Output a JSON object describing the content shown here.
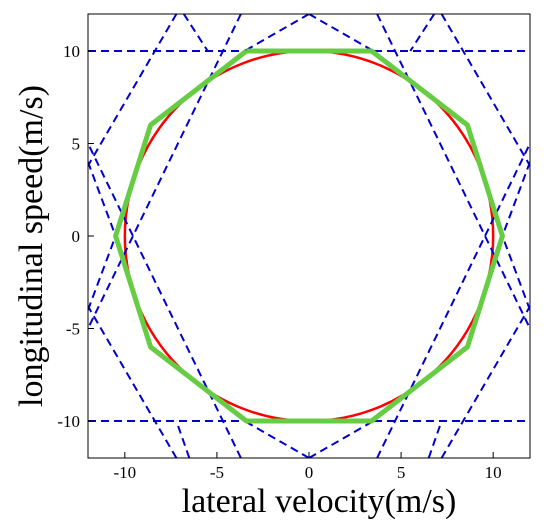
{
  "chart_data": {
    "type": "line",
    "title": "",
    "xlabel": "lateral velocity(m/s)",
    "ylabel": "longitudinal speed(m/s)",
    "xlim": [
      -12,
      12
    ],
    "ylim": [
      -12,
      12
    ],
    "xticks": [
      -10,
      -5,
      0,
      5,
      10
    ],
    "yticks": [
      -10,
      -5,
      0,
      5,
      10
    ],
    "grid": false,
    "legend": "none",
    "series": [
      {
        "kind": "circle",
        "color": "#ff0000",
        "center": [
          0,
          0
        ],
        "radius": 10,
        "style": "solid"
      },
      {
        "kind": "constraint-lines",
        "color": "#0000cc",
        "style": "dashed",
        "lines": [
          {
            "points": [
              [
                -12,
                10
              ],
              [
                12,
                10
              ]
            ]
          },
          {
            "points": [
              [
                -12,
                -10
              ],
              [
                12,
                -10
              ]
            ]
          },
          {
            "points": [
              [
                -7.2,
                12
              ],
              [
                -12,
                3.8
              ]
            ]
          },
          {
            "points": [
              [
                7.2,
                12
              ],
              [
                12,
                3.8
              ]
            ]
          },
          {
            "points": [
              [
                -7.2,
                -12
              ],
              [
                -12,
                -3.8
              ]
            ]
          },
          {
            "points": [
              [
                7.2,
                -12
              ],
              [
                12,
                -3.8
              ]
            ]
          },
          {
            "points": [
              [
                -3.7,
                12
              ],
              [
                -12,
                -5
              ]
            ]
          },
          {
            "points": [
              [
                3.7,
                12
              ],
              [
                12,
                -5
              ]
            ]
          },
          {
            "points": [
              [
                -3.7,
                -12
              ],
              [
                -12,
                5
              ]
            ]
          },
          {
            "points": [
              [
                3.7,
                -12
              ],
              [
                12,
                5
              ]
            ]
          },
          {
            "points": [
              [
                -6.8,
                12
              ],
              [
                -5.5,
                10
              ]
            ]
          },
          {
            "points": [
              [
                6.8,
                12
              ],
              [
                5.5,
                10
              ]
            ]
          },
          {
            "points": [
              [
                -6.5,
                -12
              ],
              [
                -7.2,
                -10
              ]
            ]
          },
          {
            "points": [
              [
                6.5,
                -12
              ],
              [
                7.2,
                -10
              ]
            ]
          },
          {
            "points": [
              [
                -12,
                4
              ],
              [
                -10.5,
                0
              ]
            ]
          },
          {
            "points": [
              [
                12,
                4
              ],
              [
                10.5,
                0
              ]
            ]
          },
          {
            "points": [
              [
                -12,
                -4
              ],
              [
                -10.5,
                0
              ]
            ]
          },
          {
            "points": [
              [
                12,
                -4
              ],
              [
                10.5,
                0
              ]
            ]
          },
          {
            "points": [
              [
                0,
                12
              ],
              [
                -3.5,
                10
              ]
            ]
          },
          {
            "points": [
              [
                0,
                12
              ],
              [
                3.5,
                10
              ]
            ]
          },
          {
            "points": [
              [
                0,
                -12
              ],
              [
                -3.5,
                -10
              ]
            ]
          },
          {
            "points": [
              [
                0,
                -12
              ],
              [
                3.5,
                -10
              ]
            ]
          }
        ]
      },
      {
        "kind": "polygon",
        "color": "#66cc44",
        "style": "solid",
        "points": [
          [
            -3.4,
            10
          ],
          [
            3.4,
            10
          ],
          [
            8.6,
            6
          ],
          [
            10.5,
            0
          ],
          [
            8.6,
            -6
          ],
          [
            3.4,
            -10
          ],
          [
            -3.4,
            -10
          ],
          [
            -8.6,
            -6
          ],
          [
            -10.5,
            0
          ],
          [
            -8.6,
            6
          ],
          [
            -3.4,
            10
          ]
        ]
      }
    ]
  }
}
